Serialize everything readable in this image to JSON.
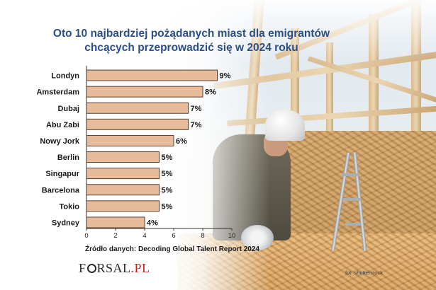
{
  "title": {
    "line1": "Oto 10 najbardziej pożądanych miast dla emigrantów",
    "line2": "chcących przeprowadzić się w 2024 roku"
  },
  "chart_data": {
    "type": "bar",
    "orientation": "horizontal",
    "categories": [
      "Londyn",
      "Amsterdam",
      "Dubaj",
      "Abu Zabi",
      "Nowy Jork",
      "Berlin",
      "Singapur",
      "Barcelona",
      "Tokio",
      "Sydney"
    ],
    "values": [
      9,
      8,
      7,
      7,
      6,
      5,
      5,
      5,
      5,
      4
    ],
    "value_labels": [
      "9%",
      "8%",
      "7%",
      "7%",
      "6%",
      "5%",
      "5%",
      "5%",
      "5%",
      "4%"
    ],
    "xlim": [
      0,
      10
    ],
    "xticks": [
      "0",
      "2",
      "4",
      "6",
      "8",
      "10"
    ],
    "grid": false,
    "bar_color": "#e8bc9b",
    "bar_edge_color": "#5a3f2e"
  },
  "footer": {
    "source": "Źródło danych: Decoding Global Talent Report 2024",
    "logo_prefix": "F",
    "logo_mid": "RSAL",
    "logo_suffix": ".PL",
    "photo_credit": "fot. shutterstock"
  }
}
